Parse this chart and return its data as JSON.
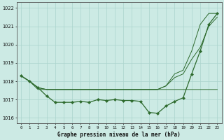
{
  "title": "Graphe pression niveau de la mer (hPa)",
  "bg_color": "#cceae4",
  "grid_color": "#aad4cc",
  "line_color": "#2d6a2d",
  "x_hours": [
    0,
    1,
    2,
    3,
    4,
    5,
    6,
    7,
    8,
    9,
    10,
    11,
    12,
    13,
    14,
    15,
    16,
    17,
    18,
    19,
    20,
    21,
    22,
    23
  ],
  "pressure_main": [
    1018.3,
    1018.0,
    1017.65,
    1017.2,
    1016.85,
    1016.85,
    1016.85,
    1016.9,
    1016.85,
    1017.0,
    1016.95,
    1017.0,
    1016.95,
    1016.95,
    1016.9,
    1016.3,
    1016.25,
    1016.65,
    1016.9,
    1017.1,
    1018.4,
    1019.65,
    1021.1,
    1021.7
  ],
  "pressure_upper": [
    1018.3,
    1018.0,
    1017.65,
    1017.55,
    1017.55,
    1017.55,
    1017.55,
    1017.55,
    1017.55,
    1017.55,
    1017.55,
    1017.55,
    1017.55,
    1017.55,
    1017.55,
    1017.55,
    1017.55,
    1017.75,
    1018.4,
    1018.6,
    1019.65,
    1021.1,
    1021.7,
    1021.7
  ],
  "pressure_lower": [
    1018.3,
    1018.0,
    1017.55,
    1017.55,
    1017.55,
    1017.55,
    1017.55,
    1017.55,
    1017.55,
    1017.55,
    1017.55,
    1017.55,
    1017.55,
    1017.55,
    1017.55,
    1017.55,
    1017.55,
    1017.55,
    1017.55,
    1017.55,
    1017.55,
    1017.55,
    1017.55,
    1017.55
  ],
  "pressure_mid": [
    1018.3,
    1018.0,
    1017.65,
    1017.55,
    1017.55,
    1017.55,
    1017.55,
    1017.55,
    1017.55,
    1017.55,
    1017.55,
    1017.55,
    1017.55,
    1017.55,
    1017.55,
    1017.55,
    1017.55,
    1017.75,
    1018.2,
    1018.4,
    1019.2,
    1019.85,
    1021.0,
    1021.5
  ],
  "ylim": [
    1015.7,
    1022.3
  ],
  "yticks": [
    1016,
    1017,
    1018,
    1019,
    1020,
    1021,
    1022
  ],
  "figwidth": 3.2,
  "figheight": 2.0,
  "dpi": 100
}
